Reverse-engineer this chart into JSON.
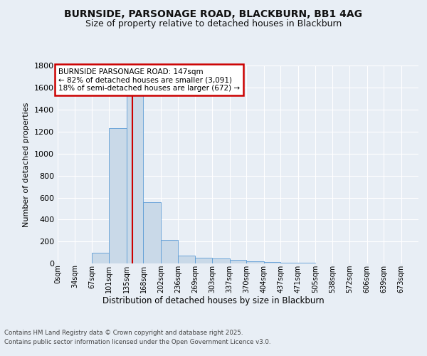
{
  "title_line1": "BURNSIDE, PARSONAGE ROAD, BLACKBURN, BB1 4AG",
  "title_line2": "Size of property relative to detached houses in Blackburn",
  "xlabel": "Distribution of detached houses by size in Blackburn",
  "ylabel": "Number of detached properties",
  "bin_labels": [
    "0sqm",
    "34sqm",
    "67sqm",
    "101sqm",
    "135sqm",
    "168sqm",
    "202sqm",
    "236sqm",
    "269sqm",
    "303sqm",
    "337sqm",
    "370sqm",
    "404sqm",
    "437sqm",
    "471sqm",
    "505sqm",
    "538sqm",
    "572sqm",
    "606sqm",
    "639sqm",
    "673sqm"
  ],
  "bin_edges": [
    0,
    34,
    67,
    101,
    135,
    168,
    202,
    236,
    269,
    303,
    337,
    370,
    404,
    437,
    471,
    505,
    538,
    572,
    606,
    639,
    673,
    707
  ],
  "bar_heights": [
    0,
    0,
    97,
    1230,
    1620,
    560,
    215,
    72,
    50,
    45,
    30,
    18,
    10,
    5,
    4,
    3,
    2,
    1,
    1,
    0,
    0
  ],
  "bar_color": "#c9d9e8",
  "bar_edge_color": "#5b9bd5",
  "property_size": 147,
  "red_line_color": "#cc0000",
  "annotation_text": "BURNSIDE PARSONAGE ROAD: 147sqm\n← 82% of detached houses are smaller (3,091)\n18% of semi-detached houses are larger (672) →",
  "annotation_box_color": "#ffffff",
  "annotation_border_color": "#cc0000",
  "ylim": [
    0,
    1800
  ],
  "yticks": [
    0,
    200,
    400,
    600,
    800,
    1000,
    1200,
    1400,
    1600,
    1800
  ],
  "background_color": "#e8eef5",
  "plot_bg_color": "#e8eef5",
  "grid_color": "#ffffff",
  "footer_line1": "Contains HM Land Registry data © Crown copyright and database right 2025.",
  "footer_line2": "Contains public sector information licensed under the Open Government Licence v3.0."
}
